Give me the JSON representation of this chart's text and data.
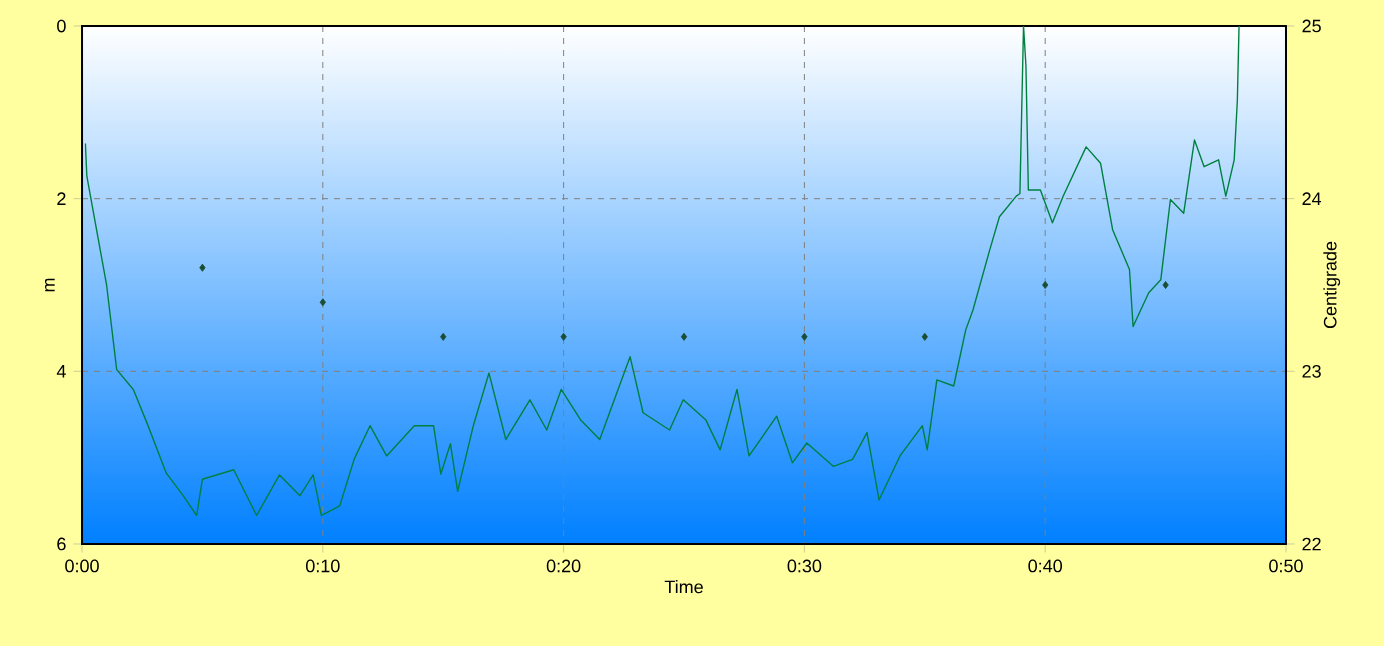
{
  "chart_data": {
    "type": "line",
    "xlabel": "Time",
    "ylabel": "m",
    "y2label": "Centigrade",
    "xlim": [
      0,
      50
    ],
    "xticks": [
      {
        "value": 0,
        "label": "0:00"
      },
      {
        "value": 10,
        "label": "0:10"
      },
      {
        "value": 20,
        "label": "0:20"
      },
      {
        "value": 30,
        "label": "0:30"
      },
      {
        "value": 40,
        "label": "0:40"
      },
      {
        "value": 50,
        "label": "0:50"
      }
    ],
    "ylim": [
      6,
      0
    ],
    "yticks": [
      0,
      2,
      4,
      6
    ],
    "y2lim": [
      22,
      25
    ],
    "y2ticks": [
      22,
      23,
      24,
      25
    ],
    "grid": true,
    "series": [
      {
        "color": "#008040",
        "x": [
          0.14,
          0.2,
          1.02,
          1.44,
          2.13,
          2.7,
          3.5,
          4.2,
          4.76,
          5.0,
          6.3,
          7.25,
          8.2,
          9.05,
          9.6,
          9.94,
          10.7,
          11.3,
          11.96,
          12.65,
          13.8,
          14.6,
          14.9,
          15.3,
          15.6,
          16.25,
          16.9,
          17.6,
          18.6,
          19.3,
          19.9,
          20.7,
          21.5,
          22.76,
          23.3,
          24.4,
          24.97,
          25.9,
          26.5,
          27.2,
          27.7,
          28.85,
          29.5,
          30.1,
          31.2,
          32.0,
          32.6,
          33.1,
          33.97,
          34.9,
          35.1,
          35.5,
          36.2,
          36.7,
          37.0,
          37.7,
          38.1,
          38.8,
          38.95,
          39.1,
          39.2,
          39.3,
          39.8,
          40.3,
          40.75,
          41.7,
          42.3,
          42.8,
          43.5,
          43.65,
          44.3,
          44.8,
          45.2,
          45.75,
          46.2,
          46.6,
          47.2,
          47.5,
          47.85,
          47.98,
          48.05
        ],
        "values": [
          1.36,
          1.74,
          3.0,
          3.98,
          4.21,
          4.6,
          5.18,
          5.44,
          5.67,
          5.25,
          5.14,
          5.67,
          5.2,
          5.44,
          5.2,
          5.67,
          5.56,
          5.02,
          4.63,
          4.98,
          4.63,
          4.63,
          5.19,
          4.84,
          5.39,
          4.63,
          4.02,
          4.79,
          4.33,
          4.68,
          4.21,
          4.56,
          4.79,
          3.83,
          4.48,
          4.68,
          4.33,
          4.56,
          4.91,
          4.21,
          4.98,
          4.52,
          5.06,
          4.83,
          5.1,
          5.02,
          4.71,
          5.49,
          4.98,
          4.63,
          4.91,
          4.1,
          4.17,
          3.52,
          3.29,
          2.59,
          2.21,
          1.97,
          1.94,
          0,
          0.46,
          1.9,
          1.9,
          2.28,
          1.97,
          1.4,
          1.59,
          2.36,
          2.82,
          3.48,
          3.09,
          2.94,
          2.01,
          2.17,
          1.32,
          1.63,
          1.55,
          1.97,
          1.55,
          0.86,
          0
        ]
      },
      {
        "type": "scatter",
        "axis": "y2",
        "color": "#1a4d33",
        "marker": "diamond",
        "x": [
          5,
          10,
          15,
          20,
          25,
          30,
          35,
          40,
          45
        ],
        "values": [
          23.6,
          23.4,
          23.2,
          23.2,
          23.2,
          23.2,
          23.2,
          23.5,
          23.5
        ]
      }
    ]
  }
}
